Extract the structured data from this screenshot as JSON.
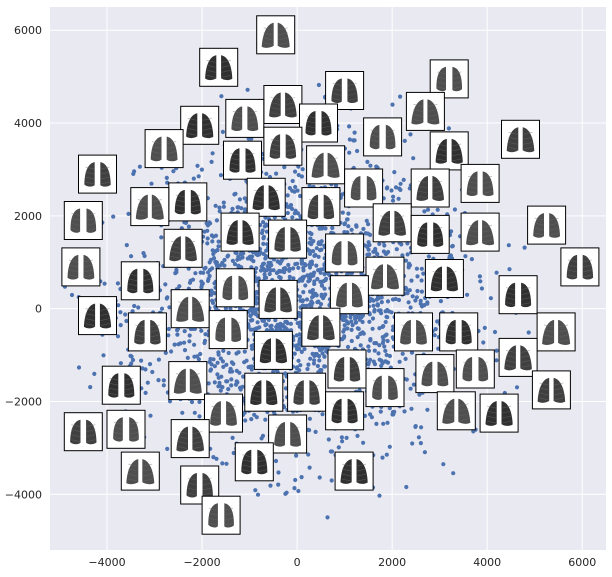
{
  "chart_data": {
    "type": "scatter",
    "title": "",
    "xlabel": "",
    "ylabel": "",
    "xlim": [
      -5200,
      6500
    ],
    "ylim": [
      -5200,
      6500
    ],
    "x_ticks": [
      -4000,
      -2000,
      0,
      2000,
      4000,
      6000
    ],
    "x_tick_labels": [
      "−4000",
      "−2000",
      "0",
      "2000",
      "4000",
      "6000"
    ],
    "y_ticks": [
      -4000,
      -2000,
      0,
      2000,
      4000,
      6000
    ],
    "y_tick_labels": [
      "−4000",
      "−2000",
      "0",
      "2000",
      "4000",
      "6000"
    ],
    "grid": true,
    "colors": {
      "background": "#e9e9f1",
      "grid": "#ffffff",
      "point": "#4c72b0",
      "thumbnail_border": "#000000",
      "thumbnail_bg": "#ffffff",
      "lung": "#1e1e1e"
    },
    "point_cloud": {
      "description": "dense cloud of ~3000 embedding points (t-SNE style)",
      "count": 2600,
      "center": [
        0,
        200
      ],
      "spread": [
        1900,
        1750
      ]
    },
    "thumbnails": [
      {
        "x": -450,
        "y": 5900
      },
      {
        "x": -1650,
        "y": 5200
      },
      {
        "x": 1000,
        "y": 4700
      },
      {
        "x": 3200,
        "y": 4950
      },
      {
        "x": -300,
        "y": 4400
      },
      {
        "x": -1100,
        "y": 4100
      },
      {
        "x": 450,
        "y": 4000
      },
      {
        "x": 2700,
        "y": 4250
      },
      {
        "x": -2050,
        "y": 3950
      },
      {
        "x": -300,
        "y": 3500
      },
      {
        "x": 1800,
        "y": 3700
      },
      {
        "x": 4700,
        "y": 3650
      },
      {
        "x": -2800,
        "y": 3450
      },
      {
        "x": -1150,
        "y": 3200
      },
      {
        "x": 600,
        "y": 3100
      },
      {
        "x": 3200,
        "y": 3400
      },
      {
        "x": -4200,
        "y": 2900
      },
      {
        "x": 1400,
        "y": 2600
      },
      {
        "x": 2800,
        "y": 2600
      },
      {
        "x": 3850,
        "y": 2700
      },
      {
        "x": -2300,
        "y": 2300
      },
      {
        "x": -3100,
        "y": 2200
      },
      {
        "x": -650,
        "y": 2400
      },
      {
        "x": 500,
        "y": 2200
      },
      {
        "x": -4500,
        "y": 1900
      },
      {
        "x": 2000,
        "y": 1850
      },
      {
        "x": 5250,
        "y": 1800
      },
      {
        "x": 2800,
        "y": 1600
      },
      {
        "x": 3850,
        "y": 1650
      },
      {
        "x": -1200,
        "y": 1650
      },
      {
        "x": -200,
        "y": 1500
      },
      {
        "x": 1000,
        "y": 1200
      },
      {
        "x": -2400,
        "y": 1300
      },
      {
        "x": -4550,
        "y": 900
      },
      {
        "x": -3300,
        "y": 600
      },
      {
        "x": 1850,
        "y": 700
      },
      {
        "x": 3100,
        "y": 650
      },
      {
        "x": 5950,
        "y": 900
      },
      {
        "x": -1300,
        "y": 450
      },
      {
        "x": -400,
        "y": 200
      },
      {
        "x": 1100,
        "y": 300
      },
      {
        "x": 4650,
        "y": 300
      },
      {
        "x": -2250,
        "y": 0
      },
      {
        "x": -4200,
        "y": -150
      },
      {
        "x": -3150,
        "y": -500
      },
      {
        "x": -1450,
        "y": -450
      },
      {
        "x": 500,
        "y": -400
      },
      {
        "x": 2450,
        "y": -500
      },
      {
        "x": 3400,
        "y": -500
      },
      {
        "x": 5450,
        "y": -500
      },
      {
        "x": -500,
        "y": -900
      },
      {
        "x": 1050,
        "y": -1300
      },
      {
        "x": 3750,
        "y": -1300
      },
      {
        "x": 4650,
        "y": -1050
      },
      {
        "x": 2900,
        "y": -1400
      },
      {
        "x": -3700,
        "y": -1650
      },
      {
        "x": -2300,
        "y": -1550
      },
      {
        "x": -700,
        "y": -1800
      },
      {
        "x": 200,
        "y": -1800
      },
      {
        "x": 1850,
        "y": -1700
      },
      {
        "x": 5350,
        "y": -1750
      },
      {
        "x": -1550,
        "y": -2250
      },
      {
        "x": 1000,
        "y": -2200
      },
      {
        "x": 3350,
        "y": -2200
      },
      {
        "x": 4250,
        "y": -2250
      },
      {
        "x": -4500,
        "y": -2650
      },
      {
        "x": -3600,
        "y": -2600
      },
      {
        "x": -2250,
        "y": -2800
      },
      {
        "x": -200,
        "y": -2700
      },
      {
        "x": -900,
        "y": -3300
      },
      {
        "x": -3300,
        "y": -3500
      },
      {
        "x": 1200,
        "y": -3500
      },
      {
        "x": -2050,
        "y": -3800
      },
      {
        "x": -1600,
        "y": -4450
      }
    ]
  }
}
